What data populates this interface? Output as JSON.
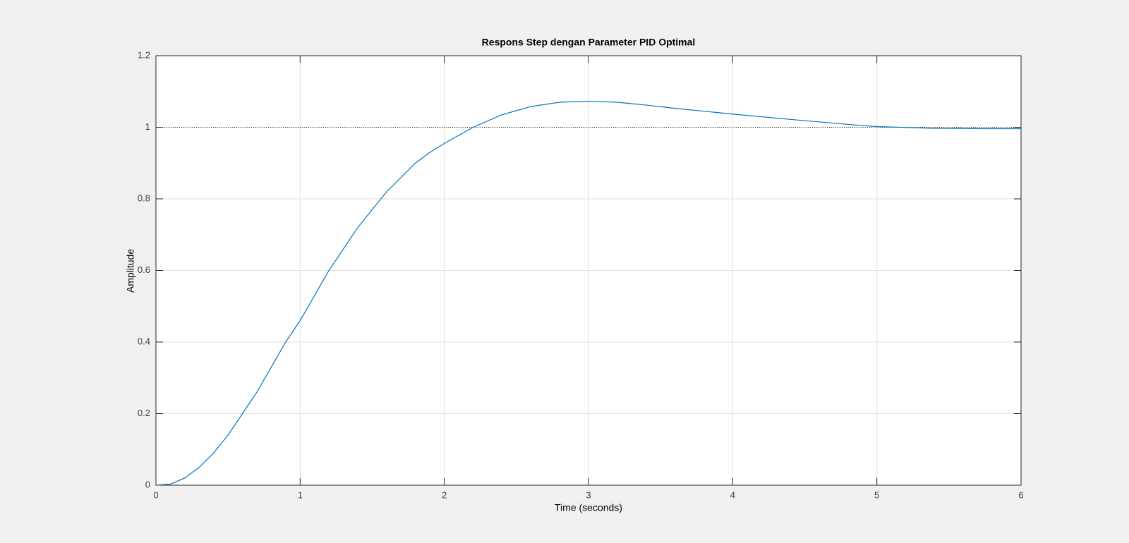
{
  "chart_data": {
    "type": "line",
    "title": "Respons Step dengan Parameter PID Optimal",
    "xlabel": "Time (seconds)",
    "ylabel": "Amplitude",
    "x": [
      0,
      0.1,
      0.2,
      0.3,
      0.4,
      0.5,
      0.6,
      0.7,
      0.8,
      0.9,
      1.0,
      1.1,
      1.2,
      1.3,
      1.4,
      1.5,
      1.6,
      1.7,
      1.8,
      1.9,
      2.0,
      2.2,
      2.4,
      2.6,
      2.8,
      3.0,
      3.2,
      3.4,
      3.6,
      3.8,
      4.0,
      4.4,
      4.8,
      5.0,
      5.4,
      5.8,
      6.0
    ],
    "series": [
      {
        "color": "#0072bd",
        "values": [
          0,
          0.003,
          0.02,
          0.05,
          0.09,
          0.14,
          0.2,
          0.26,
          0.33,
          0.4,
          0.46,
          0.53,
          0.6,
          0.66,
          0.72,
          0.77,
          0.82,
          0.86,
          0.9,
          0.93,
          0.955,
          1.0,
          1.035,
          1.058,
          1.07,
          1.073,
          1.07,
          1.062,
          1.053,
          1.045,
          1.037,
          1.022,
          1.008,
          1.002,
          0.997,
          0.996,
          0.996
        ]
      }
    ],
    "reference_line": 1,
    "xlim": [
      0,
      6
    ],
    "xticks": [
      0,
      1,
      2,
      3,
      4,
      5,
      6
    ],
    "ylim": [
      0,
      1.2
    ],
    "yticks": [
      0,
      0.2,
      0.4,
      0.6,
      0.8,
      1,
      1.2
    ],
    "grid": true
  }
}
